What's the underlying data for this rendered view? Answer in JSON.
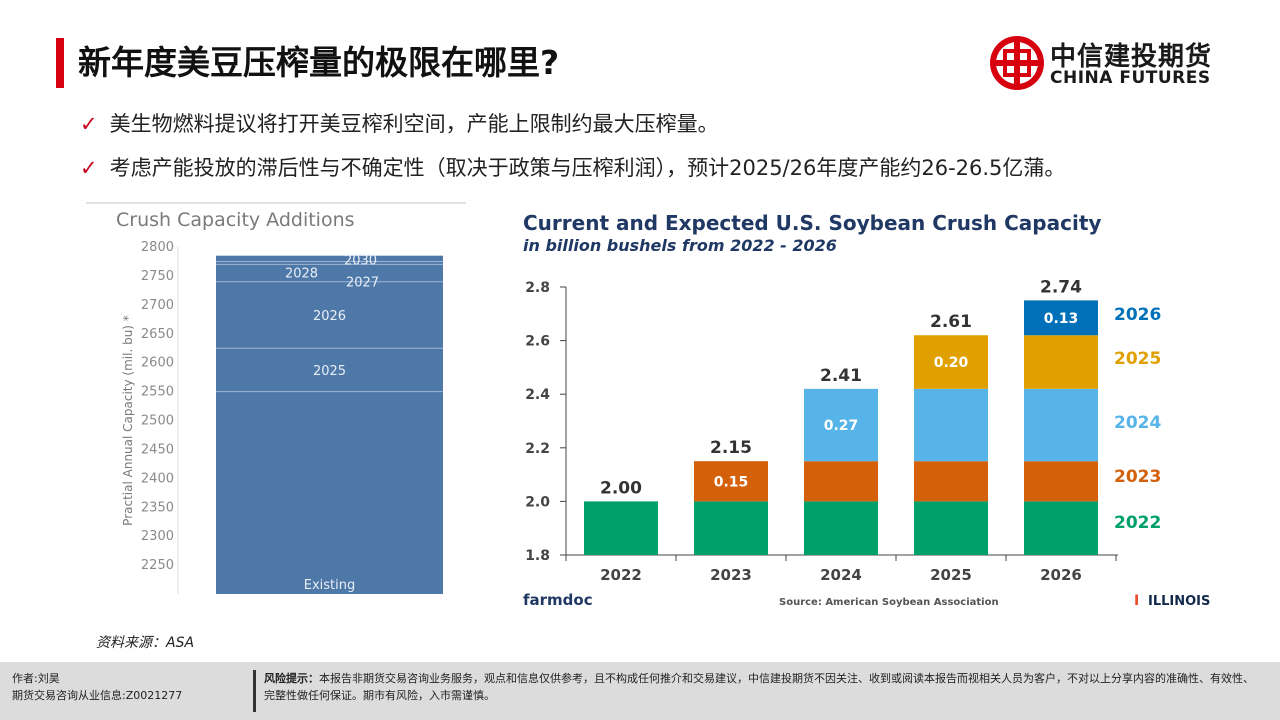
{
  "header": {
    "title": "新年度美豆压榨量的极限在哪里?",
    "logo_cn": "中信建投期货",
    "logo_en": "CHINA FUTURES",
    "accent_color": "#d7000f"
  },
  "bullets": [
    "美生物燃料提议将打开美豆榨利空间，产能上限制约最大压榨量。",
    "考虑产能投放的滞后性与不确定性（取决于政策与压榨利润），预计2025/26年度产能约26-26.5亿蒲。"
  ],
  "bullet_icon": "checkmark-icon",
  "chart_data": [
    {
      "type": "bar",
      "title": "Crush Capacity Additions",
      "ylabel": "Practial Annual Capacity (mil. bu) *",
      "ylim": [
        2200,
        2800
      ],
      "yticks": [
        2250,
        2300,
        2350,
        2400,
        2450,
        2500,
        2550,
        2600,
        2650,
        2700,
        2750,
        2800
      ],
      "stack": [
        {
          "label": "Existing",
          "from": 2200,
          "to": 2550
        },
        {
          "label": "2025",
          "from": 2550,
          "to": 2625
        },
        {
          "label": "2026",
          "from": 2625,
          "to": 2740
        },
        {
          "label": "2027",
          "from": 2740,
          "to": 2770
        },
        {
          "label": "2028",
          "from": 2770,
          "to": 2775
        },
        {
          "label": "2030",
          "from": 2775,
          "to": 2785
        }
      ],
      "bar_color": "#4e78a8"
    },
    {
      "type": "bar",
      "title": "Current and Expected U.S. Soybean Crush Capacity",
      "subtitle": "in billion bushels from 2022 - 2026",
      "categories": [
        "2022",
        "2023",
        "2024",
        "2025",
        "2026"
      ],
      "ylim": [
        1.8,
        2.8
      ],
      "yticks": [
        "1.8",
        "2.0",
        "2.2",
        "2.4",
        "2.6",
        "2.8"
      ],
      "totals": [
        "2.00",
        "2.15",
        "2.41",
        "2.61",
        "2.74"
      ],
      "series": [
        {
          "name": "2022",
          "color": "#00a06a",
          "values": [
            2.0,
            2.0,
            2.0,
            2.0,
            2.0
          ],
          "labels": [
            "",
            "",
            "",
            "",
            ""
          ]
        },
        {
          "name": "2023",
          "color": "#d4600a",
          "values": [
            0,
            0.15,
            0.15,
            0.15,
            0.15
          ],
          "labels": [
            "",
            "0.15",
            "",
            "",
            ""
          ]
        },
        {
          "name": "2024",
          "color": "#56b4e9",
          "values": [
            0,
            0,
            0.27,
            0.27,
            0.27
          ],
          "labels": [
            "",
            "",
            "0.27",
            "",
            ""
          ]
        },
        {
          "name": "2025",
          "color": "#e0a100",
          "values": [
            0,
            0,
            0,
            0.2,
            0.2
          ],
          "labels": [
            "",
            "",
            "",
            "0.20",
            ""
          ]
        },
        {
          "name": "2026",
          "color": "#0070b8",
          "values": [
            0,
            0,
            0,
            0,
            0.13
          ],
          "labels": [
            "",
            "",
            "",
            "",
            "0.13"
          ]
        }
      ],
      "brand_left": "farmdoc",
      "source": "Source: American Soybean Association",
      "brand_right": "ILLINOIS"
    }
  ],
  "source_note": "资料来源：ASA",
  "footer": {
    "author": "作者:刘昊",
    "license": "期货交易咨询从业信息:Z0021277",
    "risk_label": "风险提示：",
    "risk_text": "本报告非期货交易咨询业务服务，观点和信息仅供参考，且不构成任何推介和交易建议，中信建投期货不因关注、收到或阅读本报告而视相关人员为客户，不对以上分享内容的准确性、有效性、完整性做任何保证。期市有风险，入市需谨慎。"
  }
}
